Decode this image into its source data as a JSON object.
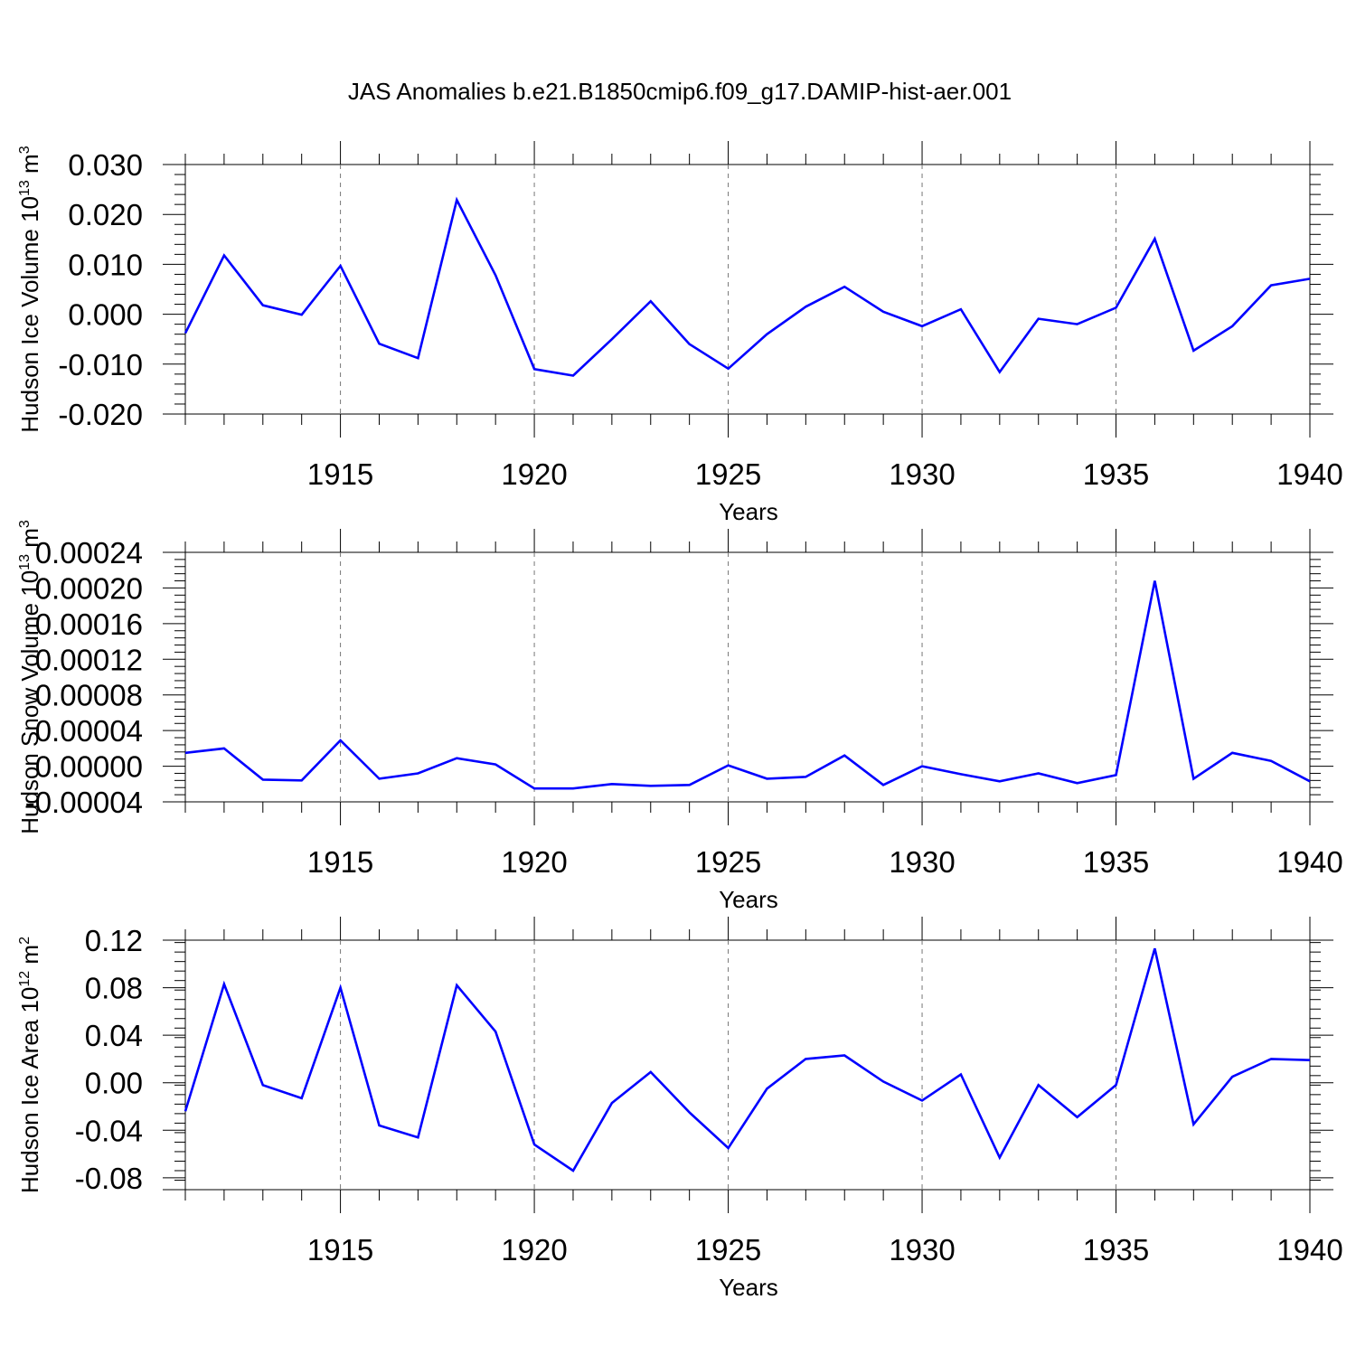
{
  "chart_data": {
    "title": "JAS Anomalies b.e21.B1850cmip6.f09_g17.DAMIP-hist-aer.001",
    "panels": [
      {
        "type": "line",
        "ylabel": "Hudson Ice Volume 10",
        "ylabel_exp": "13",
        "ylabel_unit": " m",
        "ylabel_unit_exp": "3",
        "xlabel": "Years",
        "ylim": [
          -0.02,
          0.03
        ],
        "yticks": [
          -0.02,
          -0.01,
          0.0,
          0.01,
          0.02,
          0.03
        ],
        "ytick_labels": [
          "-0.020",
          "-0.010",
          "0.000",
          "0.010",
          "0.020",
          "0.030"
        ],
        "series": [
          {
            "name": "Hudson Ice Volume",
            "color": "#0000ff",
            "values": [
              -0.0038,
              0.0118,
              0.0018,
              -0.0001,
              0.0097,
              -0.0059,
              -0.0088,
              0.0229,
              0.0078,
              -0.011,
              -0.0123,
              -0.005,
              0.0026,
              -0.006,
              -0.0109,
              -0.004,
              0.0015,
              0.0055,
              0.0005,
              -0.0024,
              0.001,
              -0.0116,
              -0.0009,
              -0.002,
              0.0013,
              0.0151,
              -0.0073,
              -0.0024,
              0.0058,
              0.0071
            ]
          }
        ]
      },
      {
        "type": "line",
        "ylabel": "Hudson Snow Volume 10",
        "ylabel_exp": "13",
        "ylabel_unit": " m",
        "ylabel_unit_exp": "3",
        "xlabel": "Years",
        "ylim": [
          -4e-05,
          0.00024
        ],
        "yticks": [
          -4e-05,
          0.0,
          4e-05,
          8e-05,
          0.00012,
          0.00016,
          0.0002,
          0.00024
        ],
        "ytick_labels": [
          "-0.00004",
          "0.00000",
          "0.00004",
          "0.00008",
          "0.00012",
          "0.00016",
          "0.00020",
          "0.00024"
        ],
        "series": [
          {
            "name": "Hudson Snow Volume",
            "color": "#0000ff",
            "values": [
              1.5e-05,
              2e-05,
              -1.5e-05,
              -1.6e-05,
              2.9e-05,
              -1.4e-05,
              -8e-06,
              9e-06,
              2e-06,
              -2.5e-05,
              -2.5e-05,
              -2e-05,
              -2.2e-05,
              -2.1e-05,
              1e-06,
              -1.4e-05,
              -1.2e-05,
              1.2e-05,
              -2.1e-05,
              0.0,
              -9e-06,
              -1.7e-05,
              -8e-06,
              -1.9e-05,
              -1e-05,
              0.000208,
              -1.4e-05,
              1.5e-05,
              6e-06,
              -1.7e-05
            ]
          }
        ]
      },
      {
        "type": "line",
        "ylabel": "Hudson Ice Area 10",
        "ylabel_exp": "12",
        "ylabel_unit": " m",
        "ylabel_unit_exp": "2",
        "xlabel": "Years",
        "ylim": [
          -0.09,
          0.12
        ],
        "yticks": [
          -0.08,
          -0.04,
          0.0,
          0.04,
          0.08,
          0.12
        ],
        "ytick_labels": [
          "-0.08",
          "-0.04",
          "0.00",
          "0.04",
          "0.08",
          "0.12"
        ],
        "series": [
          {
            "name": "Hudson Ice Area",
            "color": "#0000ff",
            "values": [
              -0.024,
              0.083,
              -0.002,
              -0.013,
              0.08,
              -0.036,
              -0.046,
              0.082,
              0.043,
              -0.052,
              -0.074,
              -0.017,
              0.009,
              -0.025,
              -0.055,
              -0.005,
              0.02,
              0.023,
              0.001,
              -0.015,
              0.007,
              -0.063,
              -0.002,
              -0.029,
              -0.002,
              0.113,
              -0.035,
              0.005,
              0.02,
              0.019
            ]
          }
        ]
      }
    ],
    "x": [
      1911,
      1912,
      1913,
      1914,
      1915,
      1916,
      1917,
      1918,
      1919,
      1920,
      1921,
      1922,
      1923,
      1924,
      1925,
      1926,
      1927,
      1928,
      1929,
      1930,
      1931,
      1932,
      1933,
      1934,
      1935,
      1936,
      1937,
      1938,
      1939,
      1940
    ],
    "xlim": [
      1911,
      1940
    ],
    "xticks": [
      1915,
      1920,
      1925,
      1930,
      1935,
      1940
    ],
    "xtick_labels": [
      "1915",
      "1920",
      "1925",
      "1930",
      "1935",
      "1940"
    ],
    "grid": "vertical dashed at major x ticks"
  }
}
